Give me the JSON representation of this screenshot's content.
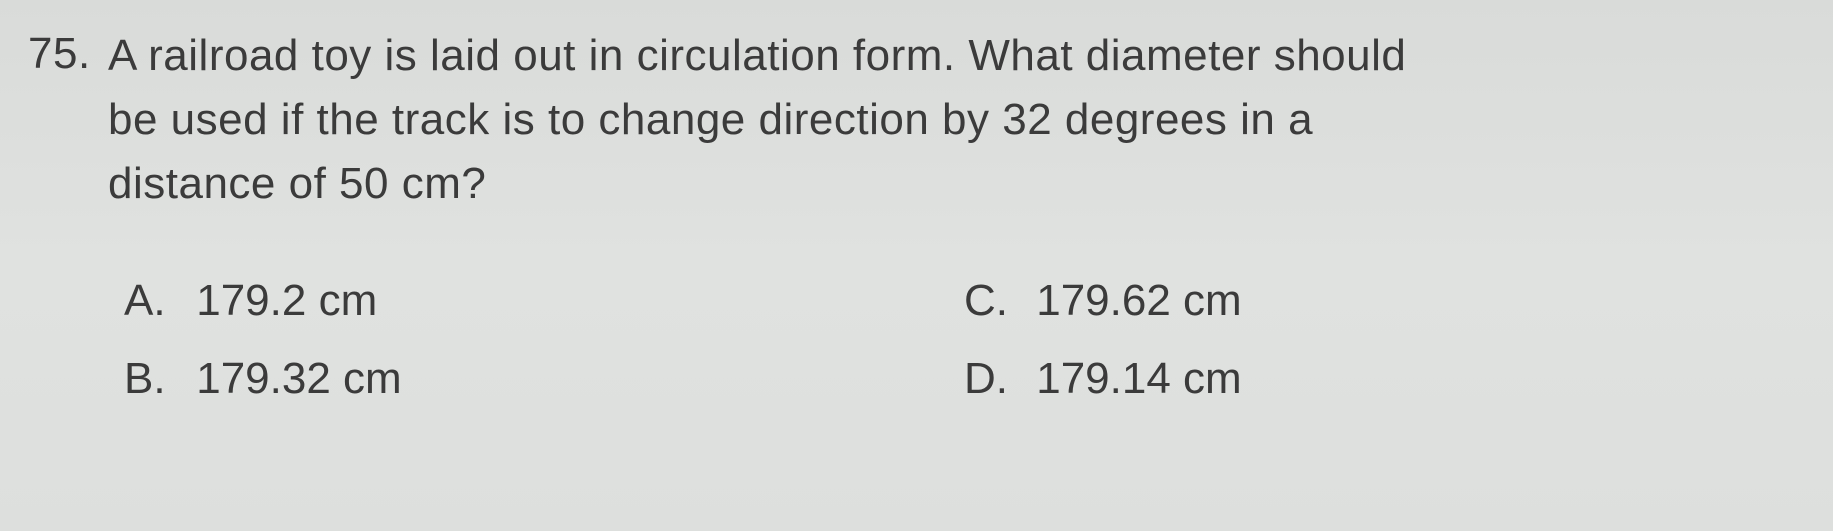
{
  "question": {
    "number": "75.",
    "lines": [
      "A railroad toy is laid out in circulation form. What diameter should",
      "be used if the track is to change direction by 32 degrees in a",
      "distance of 50 cm?"
    ]
  },
  "choices": {
    "a": {
      "letter": "A.",
      "text": "179.2 cm"
    },
    "b": {
      "letter": "B.",
      "text": "179.32 cm"
    },
    "c": {
      "letter": "C.",
      "text": "179.62 cm"
    },
    "d": {
      "letter": "D.",
      "text": "179.14 cm"
    }
  },
  "style": {
    "background": "#dcdedc",
    "text_color": "#3b3b3b",
    "font_size_pt": 33,
    "font_family": "Arial"
  }
}
